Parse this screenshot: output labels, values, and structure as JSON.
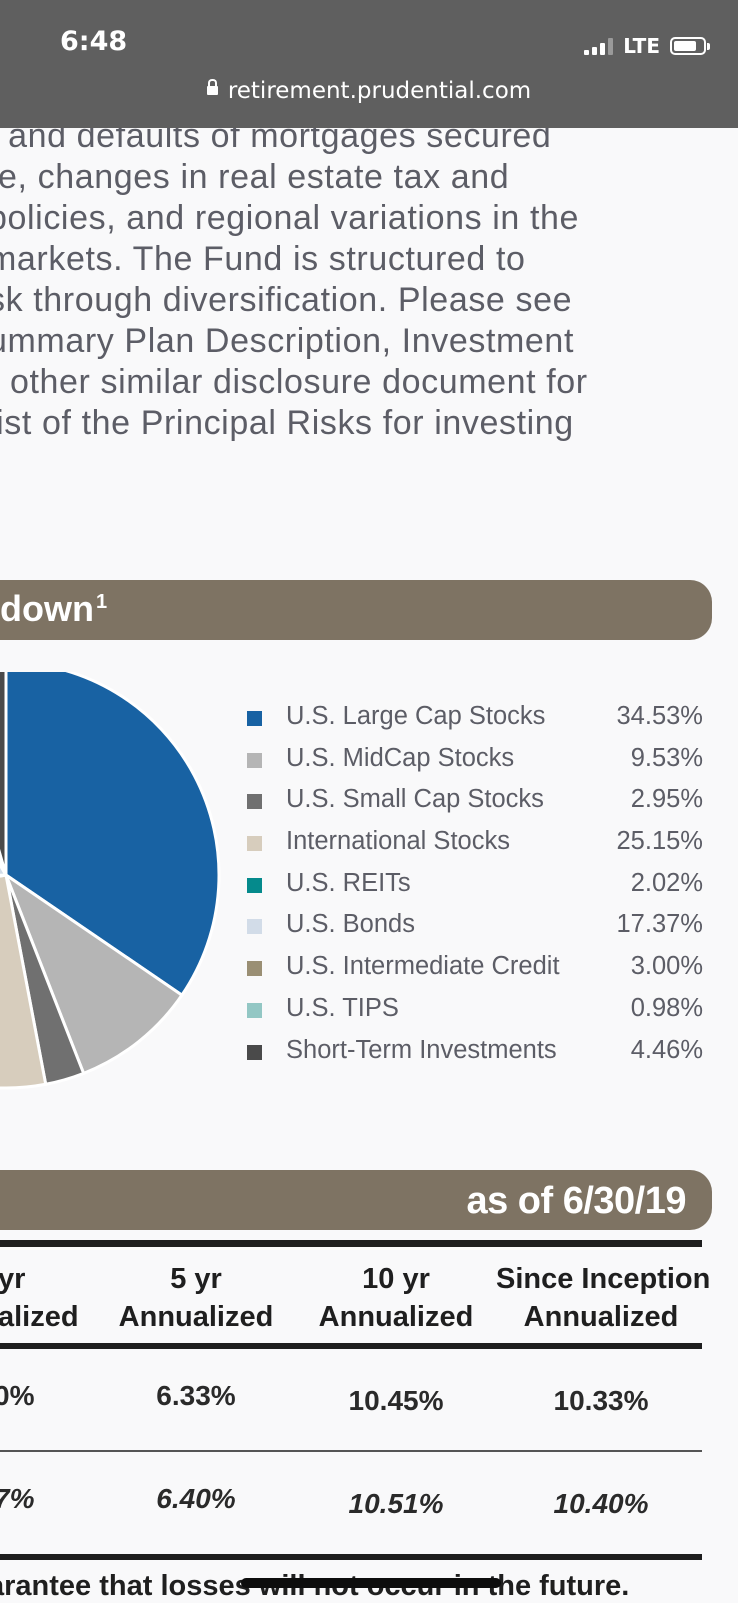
{
  "status_bar": {
    "time": "6:48",
    "network": "LTE",
    "battery_icon": "battery-icon",
    "signal_icon": "signal-icon"
  },
  "browser": {
    "url": "retirement.prudential.com"
  },
  "paragraph_lines": [
    "t and defaults of mortgages secured",
    "te, changes in real estate tax and",
    "policies, and regional variations in the",
    "markets. The Fund is structured to",
    "sk through diversification. Please see",
    "ummary Plan Description, Investment",
    "r other similar disclosure document for",
    "list of the Principal Risks for investing",
    "."
  ],
  "breakdown_section": {
    "title": "down",
    "footnote": "1"
  },
  "chart_data": {
    "type": "pie",
    "categories": [
      "U.S. Large Cap Stocks",
      "U.S. MidCap Stocks",
      "U.S. Small Cap Stocks",
      "International Stocks",
      "U.S. REITs",
      "U.S. Bonds",
      "U.S. Intermediate Credit",
      "U.S. TIPS",
      "Short-Term Investments"
    ],
    "values": [
      34.53,
      9.53,
      2.95,
      25.15,
      2.02,
      17.37,
      3.0,
      0.98,
      4.46
    ],
    "labels": [
      "34.53%",
      "9.53%",
      "2.95%",
      "25.15%",
      "2.02%",
      "17.37%",
      "3.00%",
      "0.98%",
      "4.46%"
    ],
    "colors": [
      "#1862a3",
      "#b5b5b5",
      "#707070",
      "#d7cdbd",
      "#058a8c",
      "#d2dce8",
      "#9a8f74",
      "#93c7c4",
      "#4a4a4a"
    ],
    "legend_position": "right"
  },
  "performance": {
    "as_of": "as of 6/30/19",
    "headers": [
      {
        "line1": "yr",
        "line2": "alized"
      },
      {
        "line1": "5 yr",
        "line2": "Annualized"
      },
      {
        "line1": "10 yr",
        "line2": "Annualized"
      },
      {
        "line1": "Since Inception",
        "line2": "Annualized"
      }
    ],
    "rows": [
      {
        "style": "normal",
        "values": [
          "0%",
          "6.33%",
          "10.45%",
          "10.33%"
        ]
      },
      {
        "style": "italic",
        "values": [
          "7%",
          "6.40%",
          "10.51%",
          "10.40%"
        ]
      }
    ]
  },
  "footer_text": "arantee that losses will not occur in the future."
}
